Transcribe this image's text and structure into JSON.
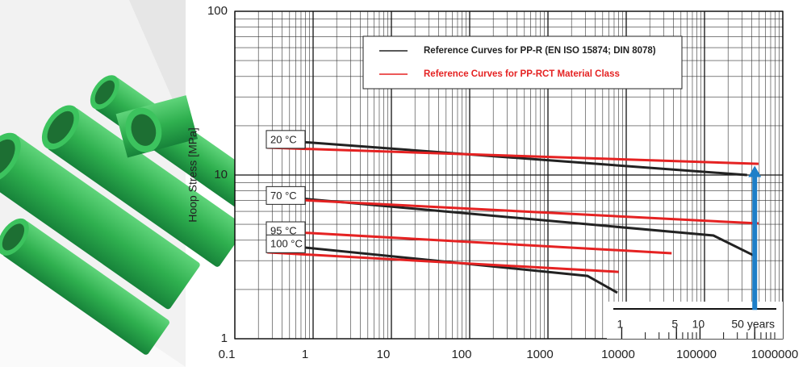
{
  "chart_data": {
    "type": "line",
    "log_x": true,
    "log_y": true,
    "grid": true,
    "ylabel": "Hoop Stress [MPa]",
    "xlim": [
      0.1,
      1000000
    ],
    "xticks": [
      0.1,
      1,
      10,
      100,
      1000,
      10000,
      100000,
      1000000
    ],
    "ylim": [
      1,
      100
    ],
    "yticks": [
      1,
      10,
      100
    ],
    "legend": [
      {
        "name": "Reference Curves for PP-R (EN ISO 15874; DIN 8078)",
        "color": "#222222"
      },
      {
        "name": "Reference Curves for PP-RCT Material Class",
        "color": "#e52222"
      }
    ],
    "curves": [
      {
        "label": "20 °C",
        "lines": [
          {
            "x": [
              0.26,
              350000
            ],
            "values": [
              16.5,
              10
            ]
          },
          {
            "x": [
              0.26,
              490000
            ],
            "values": [
              14.7,
              11.7
            ]
          }
        ]
      },
      {
        "label": "70 °C",
        "lines": [
          {
            "x": [
              0.26,
              130000,
              440000
            ],
            "values": [
              7.5,
              4.27,
              3.2
            ]
          },
          {
            "x": [
              0.26,
              490000
            ],
            "values": [
              7.2,
              5.06
            ]
          }
        ]
      },
      {
        "label": "95 °C",
        "lines": [
          null,
          {
            "x": [
              0.26,
              38000
            ],
            "values": [
              4.57,
              3.33
            ]
          }
        ]
      },
      {
        "label": "100 °C",
        "lines": [
          {
            "x": [
              0.26,
              3200,
              7700
            ],
            "values": [
              3.8,
              2.42,
              1.91
            ]
          },
          {
            "x": [
              0.26,
              8000
            ],
            "values": [
              3.37,
              2.56
            ]
          }
        ]
      }
    ],
    "years_axis": {
      "ticks": [
        {
          "value": 8760,
          "label": "1"
        },
        {
          "value": 43800,
          "label": "5"
        },
        {
          "value": 87600,
          "label": "10"
        },
        {
          "value": 438000,
          "label": "50 years"
        }
      ]
    },
    "arrow": {
      "x": 438000,
      "y": [
        1.5,
        11.4
      ],
      "color": "#1e7fc8"
    }
  }
}
